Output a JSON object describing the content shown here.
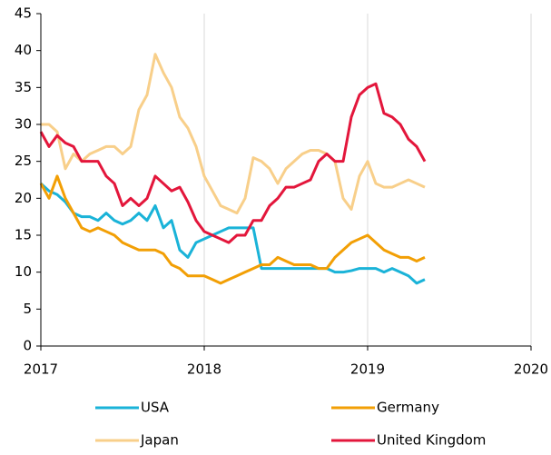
{
  "chart_data": {
    "type": "line",
    "x": [
      2017,
      2017.05,
      2017.1,
      2017.15,
      2017.2,
      2017.25,
      2017.3,
      2017.35,
      2017.4,
      2017.45,
      2017.5,
      2017.55,
      2017.6,
      2017.65,
      2017.7,
      2017.75,
      2017.8,
      2017.85,
      2017.9,
      2017.95,
      2018,
      2018.05,
      2018.1,
      2018.15,
      2018.2,
      2018.25,
      2018.3,
      2018.35,
      2018.4,
      2018.45,
      2018.5,
      2018.55,
      2018.6,
      2018.65,
      2018.7,
      2018.75,
      2018.8,
      2018.85,
      2018.9,
      2018.95,
      2019,
      2019.05,
      2019.1,
      2019.15,
      2019.2,
      2019.25,
      2019.3,
      2019.35
    ],
    "series": [
      {
        "name": "USA",
        "color": "#1ab3d8",
        "values": [
          22,
          21,
          20.5,
          19.5,
          18,
          17.5,
          17.5,
          17,
          18,
          17,
          16.5,
          17,
          18,
          17,
          19,
          16,
          17,
          13,
          12,
          14,
          14.5,
          15,
          15.5,
          16,
          16,
          16,
          16,
          10.5,
          10.5,
          10.5,
          10.5,
          10.5,
          10.5,
          10.5,
          10.5,
          10.5,
          10,
          10,
          10.2,
          10.5,
          10.5,
          10.5,
          10,
          10.5,
          10,
          9.5,
          8.5,
          9
        ]
      },
      {
        "name": "Germany",
        "color": "#f29f05",
        "values": [
          22,
          20,
          23,
          20,
          18,
          16,
          15.5,
          16,
          15.5,
          15,
          14,
          13.5,
          13,
          13,
          13,
          12.5,
          11,
          10.5,
          9.5,
          9.5,
          9.5,
          9,
          8.5,
          9,
          9.5,
          10,
          10.5,
          11,
          11,
          12,
          11.5,
          11,
          11,
          11,
          10.5,
          10.5,
          12,
          13,
          14,
          14.5,
          15,
          14,
          13,
          12.5,
          12,
          12,
          11.5,
          12
        ]
      },
      {
        "name": "Japan",
        "color": "#f8cf8a",
        "values": [
          30,
          30,
          29,
          24,
          26,
          25,
          26,
          26.5,
          27,
          27,
          26,
          27,
          32,
          34,
          39.5,
          37,
          35,
          31,
          29.5,
          27,
          23,
          21,
          19,
          18.5,
          18,
          20,
          25.5,
          25,
          24,
          22,
          24,
          25,
          26,
          26.5,
          26.5,
          26,
          25,
          20,
          18.5,
          23,
          25,
          22,
          21.5,
          21.5,
          22,
          22.5,
          22,
          21.5
        ]
      },
      {
        "name": "United Kingdom",
        "color": "#e3163b",
        "values": [
          29,
          27,
          28.5,
          27.5,
          27,
          25,
          25,
          25,
          23,
          22,
          19,
          20,
          19,
          20,
          23,
          22,
          21,
          21.5,
          19.5,
          17,
          15.5,
          15,
          14.5,
          14,
          15,
          15,
          17,
          17,
          19,
          20,
          21.5,
          21.5,
          22,
          22.5,
          25,
          26,
          25,
          25,
          31,
          34,
          35,
          35.5,
          31.5,
          31,
          30,
          28,
          27,
          25
        ]
      }
    ],
    "xlim": [
      2017,
      2020
    ],
    "xticks": [
      2017,
      2018,
      2019,
      2020
    ],
    "ylim": [
      0,
      45
    ],
    "yticks": [
      0,
      5,
      10,
      15,
      20,
      25,
      30,
      35,
      40,
      45
    ],
    "grid": true
  }
}
